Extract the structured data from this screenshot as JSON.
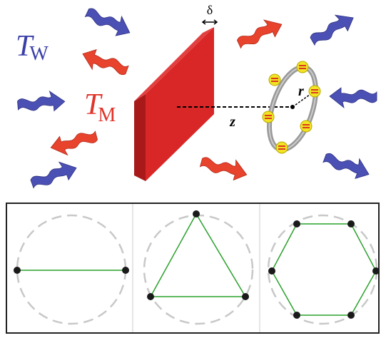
{
  "labels": {
    "temperature_wall": {
      "symbol": "T",
      "subscript": "W"
    },
    "temperature_membrane": {
      "symbol": "T",
      "subscript": "M"
    },
    "thickness": "δ",
    "radius": "r",
    "distance": "z"
  }
}
